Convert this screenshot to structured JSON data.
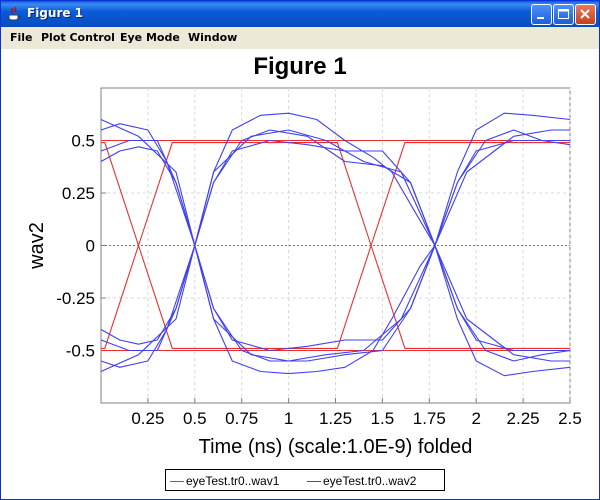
{
  "window": {
    "title": "Figure 1",
    "controls": [
      "minimize",
      "maximize",
      "close"
    ]
  },
  "menu": {
    "items": [
      "File",
      "Plot Control",
      "Eye Mode",
      "Window"
    ]
  },
  "colors": {
    "wav1": "#e83030",
    "wav2": "#4040f0"
  },
  "chart_data": {
    "type": "line",
    "title": "Figure 1",
    "xlabel": "Time (ns) (scale:1.0E-9) folded",
    "ylabel": "wav2",
    "xlim": [
      0.0,
      2.5
    ],
    "ylim": [
      -0.75,
      0.75
    ],
    "xticks": [
      "0.25",
      "0.5",
      "0.75",
      "1",
      "1.25",
      "1.5",
      "1.75",
      "2",
      "2.25",
      "2.5"
    ],
    "yticks": [
      "-0.5",
      "-0.25",
      "0",
      "0.25",
      "0.5"
    ],
    "grid": true,
    "legend_position": "bottom",
    "series": [
      {
        "name": "eyeTest.tr0..wav1",
        "paths": [
          {
            "x": [
              0,
              0.02,
              0.2,
              0.38,
              0.4,
              1.24,
              1.26,
              1.44,
              1.62,
              1.64,
              2.5
            ],
            "y": [
              0.49,
              0.49,
              0,
              -0.49,
              -0.49,
              -0.49,
              -0.49,
              0,
              0.49,
              0.49,
              0.49
            ]
          },
          {
            "x": [
              0,
              0.02,
              0.2,
              0.38,
              0.4,
              1.24,
              1.26,
              1.44,
              1.62,
              1.64,
              2.5
            ],
            "y": [
              -0.49,
              -0.49,
              0,
              0.49,
              0.49,
              0.49,
              0.49,
              0,
              -0.49,
              -0.49,
              -0.49
            ]
          },
          {
            "x": [
              0,
              1.26,
              1.62,
              2.5
            ],
            "y": [
              0.5,
              0.5,
              0.5,
              0.5
            ]
          },
          {
            "x": [
              0,
              1.26,
              1.62,
              2.5
            ],
            "y": [
              -0.5,
              -0.5,
              -0.5,
              -0.5
            ]
          }
        ]
      },
      {
        "name": "eyeTest.tr0..wav2",
        "paths": [
          {
            "x": [
              0,
              0.1,
              0.25,
              0.35,
              0.5,
              0.6,
              0.7,
              0.85,
              1.0,
              1.15,
              1.3,
              1.45,
              1.55,
              1.7,
              1.78,
              1.9,
              2.0,
              2.15,
              2.3,
              2.5
            ],
            "y": [
              0.55,
              0.58,
              0.55,
              0.4,
              0.0,
              -0.35,
              -0.55,
              -0.6,
              -0.61,
              -0.6,
              -0.58,
              -0.5,
              -0.35,
              -0.1,
              0.0,
              0.35,
              0.55,
              0.63,
              0.62,
              0.6
            ]
          },
          {
            "x": [
              0,
              0.1,
              0.25,
              0.35,
              0.5,
              0.6,
              0.7,
              0.85,
              1.0,
              1.15,
              1.3,
              1.45,
              1.55,
              1.7,
              1.78,
              1.9,
              2.0,
              2.15,
              2.3,
              2.5
            ],
            "y": [
              -0.55,
              -0.58,
              -0.55,
              -0.4,
              0.0,
              0.35,
              0.55,
              0.62,
              0.63,
              0.6,
              0.5,
              0.42,
              0.35,
              0.12,
              0.0,
              -0.35,
              -0.55,
              -0.62,
              -0.6,
              -0.58
            ]
          },
          {
            "x": [
              0,
              0.15,
              0.3,
              0.4,
              0.5,
              0.6,
              0.7,
              0.9,
              1.1,
              1.3,
              1.5,
              1.65,
              1.78,
              1.9,
              2.0,
              2.2,
              2.5
            ],
            "y": [
              0.45,
              0.5,
              0.5,
              0.3,
              0.0,
              -0.3,
              -0.45,
              -0.5,
              -0.48,
              -0.45,
              -0.45,
              -0.3,
              0.0,
              0.3,
              0.45,
              0.5,
              0.5
            ]
          },
          {
            "x": [
              0,
              0.15,
              0.3,
              0.4,
              0.5,
              0.6,
              0.7,
              0.9,
              1.1,
              1.3,
              1.5,
              1.65,
              1.78,
              1.9,
              2.0,
              2.2,
              2.5
            ],
            "y": [
              -0.45,
              -0.5,
              -0.5,
              -0.3,
              0.0,
              0.3,
              0.45,
              0.5,
              0.48,
              0.45,
              0.45,
              0.3,
              0.0,
              -0.3,
              -0.45,
              -0.5,
              -0.5
            ]
          },
          {
            "x": [
              0,
              0.2,
              0.4,
              0.5,
              0.6,
              0.8,
              1.0,
              1.2,
              1.4,
              1.6,
              1.78,
              1.95,
              2.2,
              2.4,
              2.5
            ],
            "y": [
              0.6,
              0.52,
              0.35,
              0.0,
              -0.35,
              -0.52,
              -0.55,
              -0.52,
              -0.5,
              -0.35,
              0.0,
              0.35,
              0.52,
              0.55,
              0.55
            ]
          },
          {
            "x": [
              0,
              0.2,
              0.4,
              0.5,
              0.6,
              0.8,
              1.0,
              1.2,
              1.4,
              1.6,
              1.78,
              1.95,
              2.2,
              2.4,
              2.5
            ],
            "y": [
              -0.6,
              -0.52,
              -0.35,
              0.0,
              0.35,
              0.52,
              0.55,
              0.5,
              0.4,
              0.35,
              0.0,
              -0.35,
              -0.52,
              -0.55,
              -0.55
            ]
          },
          {
            "x": [
              0,
              0.1,
              0.2,
              0.3,
              0.4,
              0.5,
              0.6,
              0.75,
              0.9,
              1.1,
              1.3,
              1.5,
              1.65,
              1.78,
              1.9,
              2.05,
              2.2,
              2.35,
              2.5
            ],
            "y": [
              0.4,
              0.45,
              0.47,
              0.45,
              0.3,
              0.0,
              -0.3,
              -0.5,
              -0.55,
              -0.55,
              -0.52,
              -0.5,
              -0.3,
              0.0,
              0.3,
              0.5,
              0.55,
              0.5,
              0.48
            ]
          },
          {
            "x": [
              0,
              0.1,
              0.2,
              0.3,
              0.4,
              0.5,
              0.6,
              0.75,
              0.9,
              1.1,
              1.3,
              1.5,
              1.65,
              1.78,
              1.9,
              2.05,
              2.2,
              2.35,
              2.5
            ],
            "y": [
              -0.4,
              -0.45,
              -0.47,
              -0.45,
              -0.3,
              0.0,
              0.3,
              0.5,
              0.55,
              0.52,
              0.4,
              0.38,
              0.3,
              0.0,
              -0.3,
              -0.5,
              -0.55,
              -0.52,
              -0.5
            ]
          }
        ]
      }
    ]
  }
}
